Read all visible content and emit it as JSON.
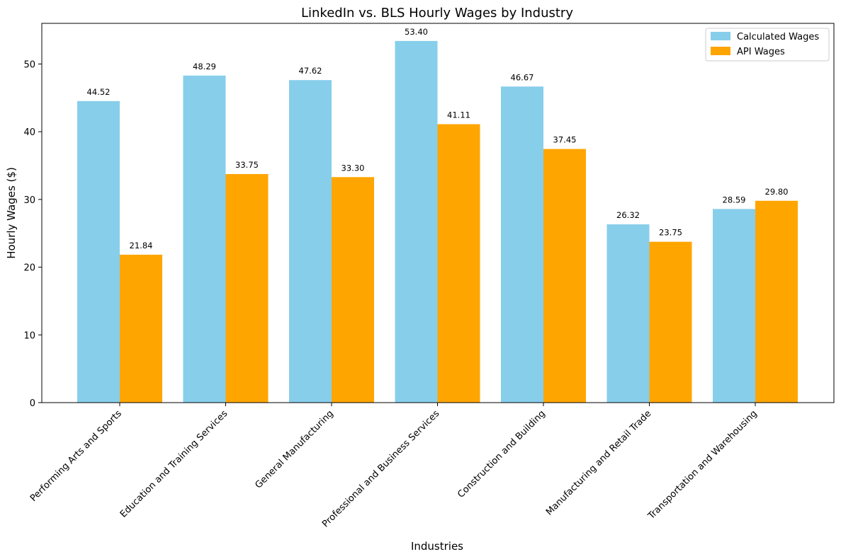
{
  "chart_data": {
    "type": "bar",
    "title": "LinkedIn vs. BLS Hourly Wages by Industry",
    "xlabel": "Industries",
    "ylabel": "Hourly Wages ($)",
    "ylim": [
      0,
      56
    ],
    "yticks": [
      0,
      10,
      20,
      30,
      40,
      50
    ],
    "categories": [
      "Performing Arts and Sports",
      "Education and Training Services",
      "General Manufacturing",
      "Professional and Business Services",
      "Construction and Building",
      "Manufacturing and Retail Trade",
      "Transportation and Warehousing"
    ],
    "series": [
      {
        "name": "Calculated Wages",
        "color": "#87ceeb",
        "values": [
          44.52,
          48.29,
          47.62,
          53.4,
          46.67,
          26.32,
          28.59
        ],
        "labels": [
          "44.52",
          "48.29",
          "47.62",
          "53.40",
          "46.67",
          "26.32",
          "28.59"
        ]
      },
      {
        "name": "API Wages",
        "color": "#ffa500",
        "values": [
          21.84,
          33.75,
          33.3,
          41.11,
          37.45,
          23.75,
          29.8
        ],
        "labels": [
          "21.84",
          "33.75",
          "33.30",
          "41.11",
          "37.45",
          "23.75",
          "29.80"
        ]
      }
    ],
    "legend": "top-right",
    "grid": false
  }
}
